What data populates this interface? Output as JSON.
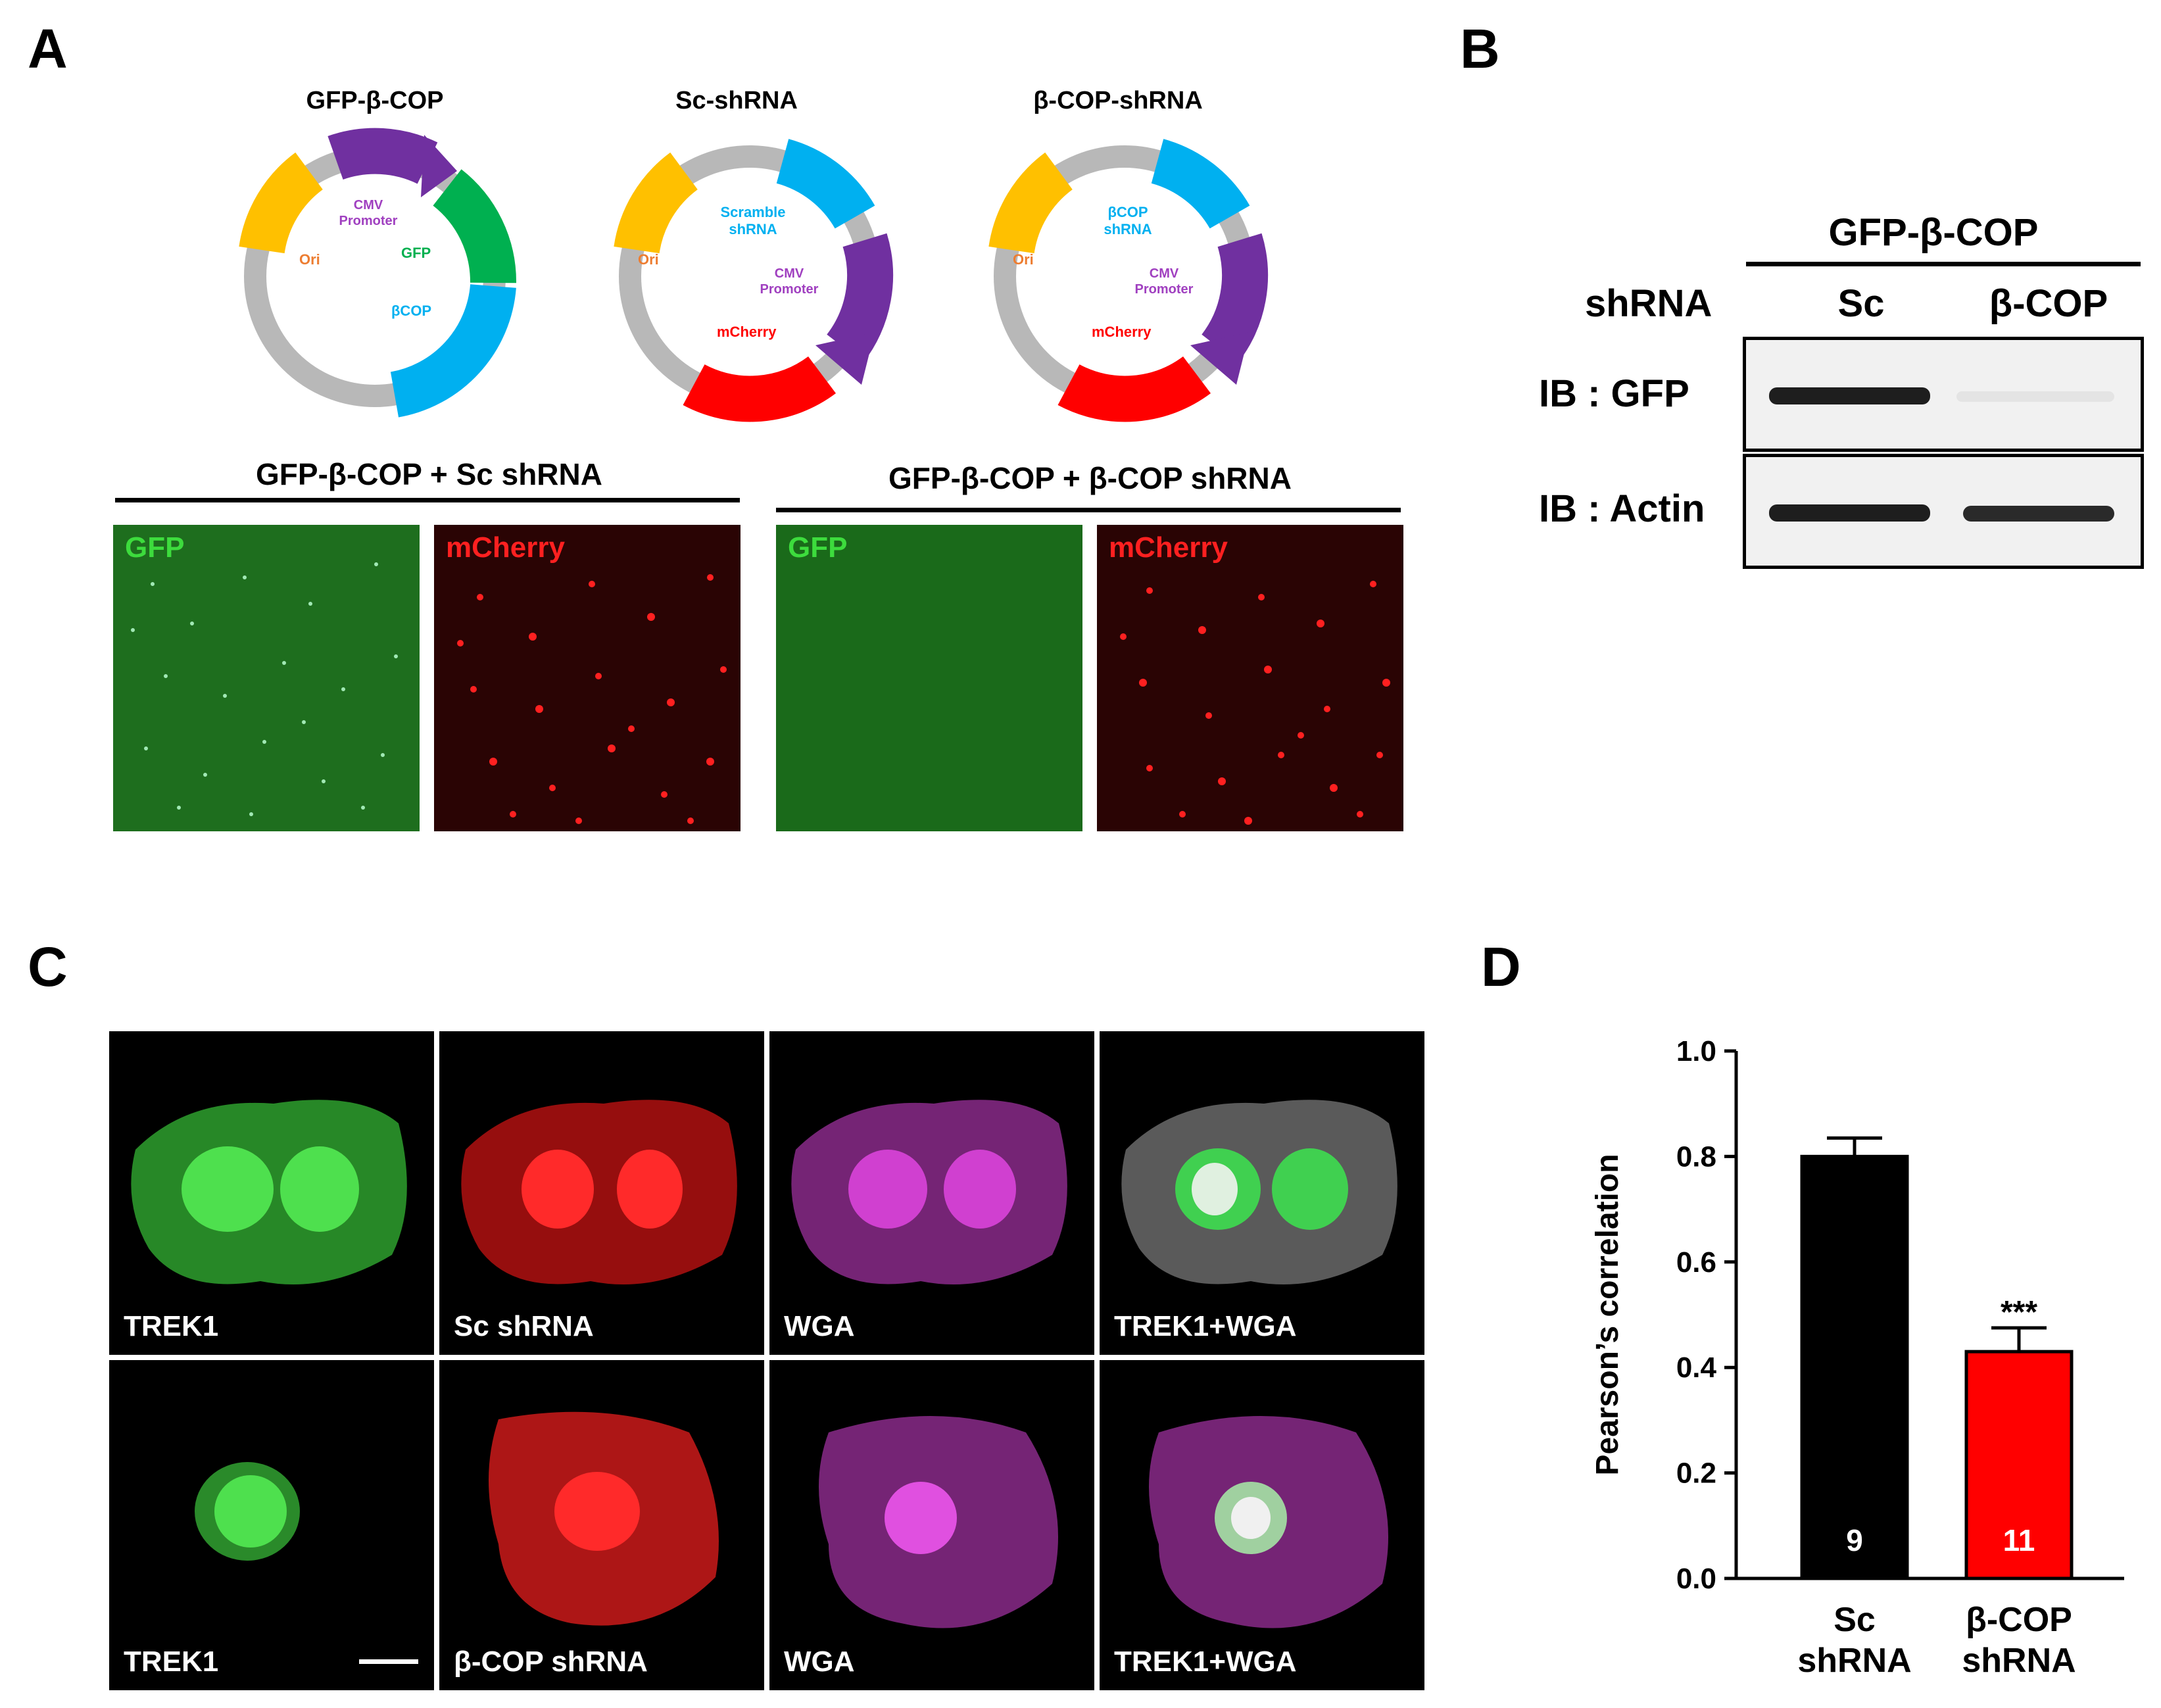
{
  "panels": {
    "a": "A",
    "b": "B",
    "c": "C",
    "d": "D"
  },
  "plasmids": [
    {
      "title": "GFP-β-COP",
      "labels": {
        "ori": "Ori",
        "promoter": "CMV\nPromoter",
        "gfp": "GFP",
        "cop": "βCOP"
      }
    },
    {
      "title": "Sc-shRNA",
      "labels": {
        "ori": "Ori",
        "shrna": "Scramble\nshRNA",
        "promoter": "CMV\nPromoter",
        "mcherry": "mCherry"
      }
    },
    {
      "title": "β-COP-shRNA",
      "labels": {
        "ori": "Ori",
        "shrna": "βCOP\nshRNA",
        "promoter": "CMV\nPromoter",
        "mcherry": "mCherry"
      }
    }
  ],
  "expression": {
    "group1": "GFP-β-COP + Sc shRNA",
    "group2": "GFP-β-COP + β-COP shRNA",
    "gfp_label": "GFP",
    "mcherry_label": "mCherry"
  },
  "blot": {
    "header": "GFP-β-COP",
    "shrna_label": "shRNA",
    "lane1": "Sc",
    "lane2": "β-COP",
    "row1": "IB : GFP",
    "row2": "IB : Actin"
  },
  "cells": {
    "row1": [
      "TREK1",
      "Sc shRNA",
      "WGA",
      "TREK1+WGA"
    ],
    "row2": [
      "TREK1",
      "β-COP shRNA",
      "WGA",
      "TREK1+WGA"
    ]
  },
  "colors": {
    "gfp": "#0fb04a",
    "mcherry": "#ff1a1a",
    "wga": "#e040e0",
    "ori": "#ffc000",
    "promoter": "#7030a0",
    "cop": "#00b0f0",
    "backbone": "#b8b8b8"
  },
  "chart_data": {
    "type": "bar",
    "categories": [
      "Sc\nshRNA",
      "β-COP\nshRNA"
    ],
    "values": [
      0.8,
      0.43
    ],
    "errors": [
      0.035,
      0.045
    ],
    "n": [
      "9",
      "11"
    ],
    "significance": [
      "",
      "***"
    ],
    "bar_colors": [
      "#000000",
      "#ff0000"
    ],
    "ylabel": "Pearson’s correlation",
    "ylim": [
      0.0,
      1.0
    ],
    "yticks": [
      "0.0",
      "0.2",
      "0.4",
      "0.6",
      "0.8",
      "1.0"
    ]
  }
}
